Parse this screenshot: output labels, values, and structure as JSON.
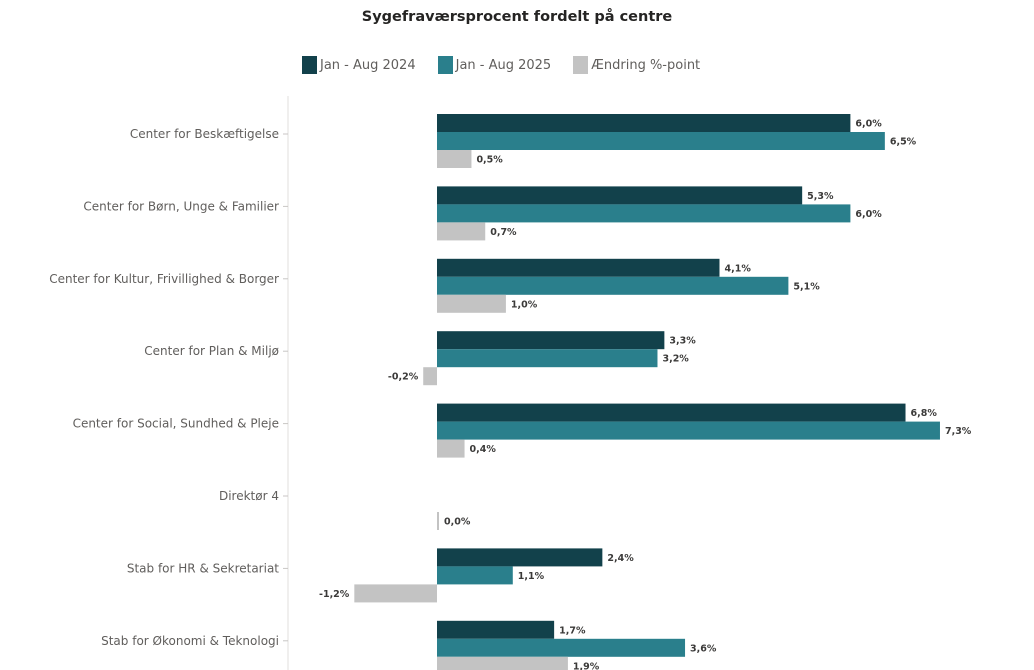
{
  "chart_data": {
    "type": "bar",
    "orientation": "horizontal",
    "title": "Sygefraværsprocent fordelt på centre",
    "legend_position": "top-center",
    "grid": false,
    "xlim": [
      -1.2,
      7.3
    ],
    "categories": [
      "Center for Beskæftigelse",
      "Center for Børn, Unge & Familier",
      "Center for Kultur, Frivillighed & Borger",
      "Center for Plan & Miljø",
      "Center for Social, Sundhed & Pleje",
      "Direktør 4",
      "Stab for HR & Sekretariat",
      "Stab for Økonomi & Teknologi"
    ],
    "series": [
      {
        "name": "Jan - Aug 2024",
        "color": "#12414b",
        "values": [
          6.0,
          5.3,
          4.1,
          3.3,
          6.8,
          null,
          2.4,
          1.7
        ],
        "labels": [
          "6,0%",
          "5,3%",
          "4,1%",
          "3,3%",
          "6,8%",
          "",
          "2,4%",
          "1,7%"
        ]
      },
      {
        "name": "Jan - Aug 2025",
        "color": "#2a7f8c",
        "values": [
          6.5,
          6.0,
          5.1,
          3.2,
          7.3,
          null,
          1.1,
          3.6
        ],
        "labels": [
          "6,5%",
          "6,0%",
          "5,1%",
          "3,2%",
          "7,3%",
          "",
          "1,1%",
          "3,6%"
        ]
      },
      {
        "name": "Ændring %-point",
        "color": "#c3c3c3",
        "values": [
          0.5,
          0.7,
          1.0,
          -0.2,
          0.4,
          0.0,
          -1.2,
          1.9
        ],
        "labels": [
          "0,5%",
          "0,7%",
          "1,0%",
          "-0,2%",
          "0,4%",
          "0,0%",
          "-1,2%",
          "1,9%"
        ]
      }
    ]
  }
}
